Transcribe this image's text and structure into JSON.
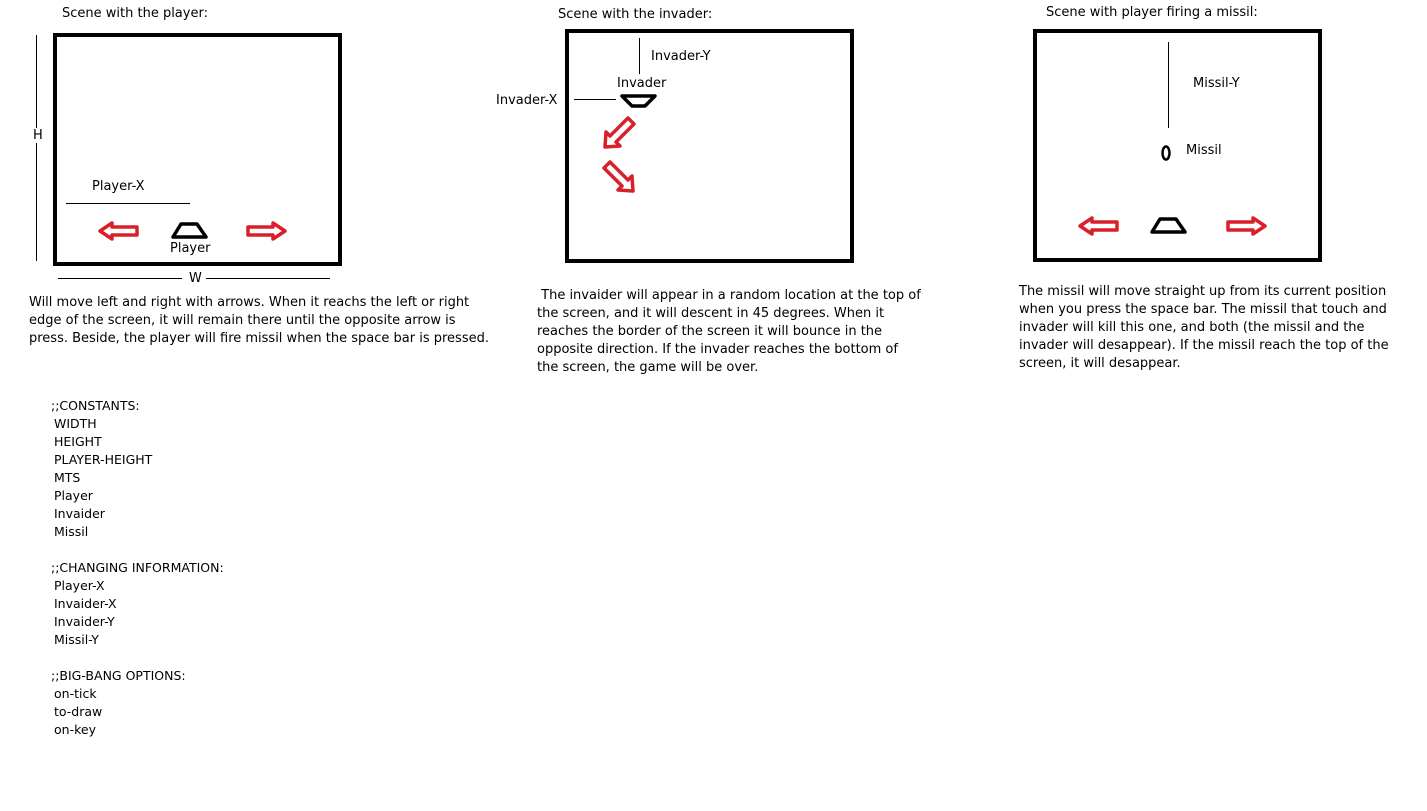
{
  "colors": {
    "arrow": "#d9202a",
    "stroke": "#000000"
  },
  "scene1": {
    "title": "Scene with the player:",
    "h_label": "H",
    "w_label": "W",
    "player_x_label": "Player-X",
    "player_label": "Player",
    "description": [
      "Will move left and right with arrows. When it reachs the left or right",
      "edge of the screen, it will remain there until the opposite arrow is",
      "press. Beside, the player will fire missil when the space bar is pressed."
    ]
  },
  "scene2": {
    "title": "Scene with the invader:",
    "invader_y_label": "Invader-Y",
    "invader_label": "Invader",
    "invader_x_label": "Invader-X",
    "description": [
      " The invaider will appear in a random location at the top of",
      "the screen, and it will descent in 45 degrees. When it",
      "reaches the border of the screen it will bounce in the",
      "opposite direction. If the invader reaches the bottom of",
      "the screen, the game will be over."
    ]
  },
  "scene3": {
    "title": "Scene with player firing a missil:",
    "missil_y_label": "Missil-Y",
    "missil_label": "Missil",
    "description": [
      "The missil will move straight up from its current position",
      "when you press the space bar. The missil that touch and",
      "invader will kill this one, and both (the missil and the",
      "invader will desappear). If the missil reach the top of the",
      "screen, it will desappear."
    ]
  },
  "notes": {
    "constants_header": ";;CONSTANTS:",
    "constants": [
      "WIDTH",
      "HEIGHT",
      "PLAYER-HEIGHT",
      "MTS",
      "Player",
      "Invaider",
      "Missil"
    ],
    "changing_header": ";;CHANGING INFORMATION:",
    "changing": [
      "Player-X",
      "Invaider-X",
      "Invaider-Y",
      "Missil-Y"
    ],
    "bigbang_header": ";;BIG-BANG OPTIONS:",
    "bigbang": [
      "on-tick",
      "to-draw",
      "on-key"
    ]
  }
}
